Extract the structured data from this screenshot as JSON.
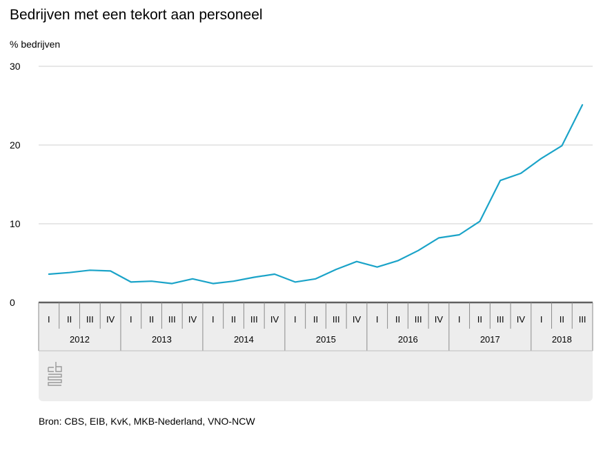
{
  "title": "Bedrijven met een tekort aan personeel",
  "source": "Bron: CBS, EIB, KvK, MKB-Nederland, VNO-NCW",
  "logo_text": "cbs",
  "chart_data": {
    "type": "line",
    "title": "Bedrijven met een tekort aan personeel",
    "ylabel": "% bedrijven",
    "ylim": [
      0,
      30
    ],
    "yticks": [
      0,
      10,
      20,
      30
    ],
    "grid": true,
    "line_color": "#1aa3c8",
    "years": [
      "2012",
      "2013",
      "2014",
      "2015",
      "2016",
      "2017",
      "2018"
    ],
    "quarter_labels": [
      "I",
      "II",
      "III",
      "IV"
    ],
    "x": [
      "2012 I",
      "2012 II",
      "2012 III",
      "2012 IV",
      "2013 I",
      "2013 II",
      "2013 III",
      "2013 IV",
      "2014 I",
      "2014 II",
      "2014 III",
      "2014 IV",
      "2015 I",
      "2015 II",
      "2015 III",
      "2015 IV",
      "2016 I",
      "2016 II",
      "2016 III",
      "2016 IV",
      "2017 I",
      "2017 II",
      "2017 III",
      "2017 IV",
      "2018 I",
      "2018 II",
      "2018 III"
    ],
    "series": [
      {
        "values": [
          3.6,
          3.8,
          4.1,
          4.0,
          2.6,
          2.7,
          2.4,
          3.0,
          2.4,
          2.7,
          3.2,
          3.6,
          2.6,
          3.0,
          4.2,
          5.2,
          4.5,
          5.3,
          6.6,
          8.2,
          8.6,
          10.3,
          15.5,
          16.4,
          18.3,
          19.9,
          25.1
        ]
      }
    ]
  }
}
